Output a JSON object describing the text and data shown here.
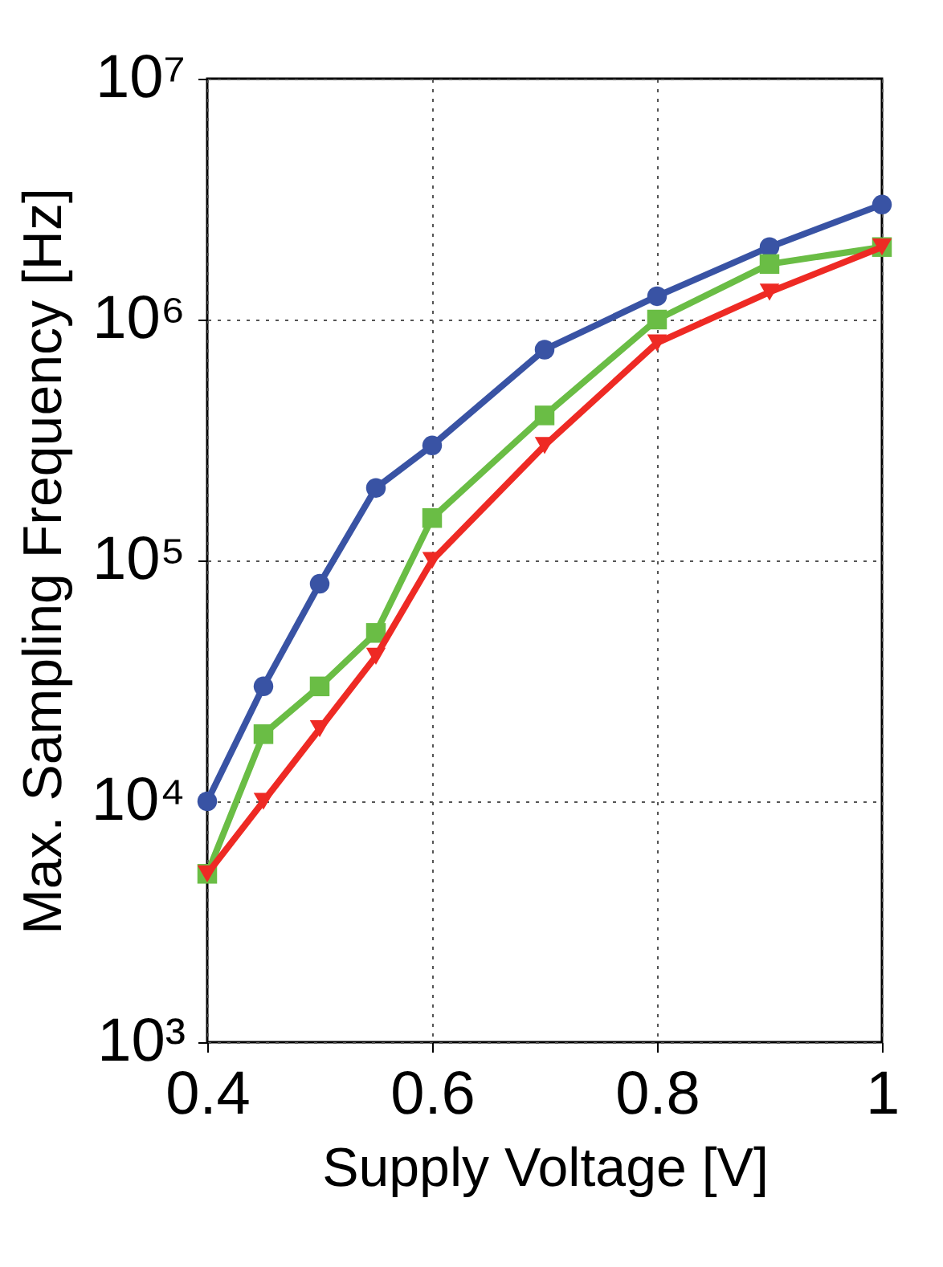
{
  "chart_data": {
    "type": "line",
    "xlabel": "Supply Voltage [V]",
    "ylabel": "Max. Sampling Frequency [Hz]",
    "x": [
      0.4,
      0.45,
      0.5,
      0.55,
      0.6,
      0.7,
      0.8,
      0.9,
      1.0
    ],
    "series": [
      {
        "color": "#3953a4",
        "marker": "circle",
        "values": [
          10000,
          30000,
          80000,
          200000,
          300000,
          750000,
          1250000,
          2000000,
          3000000
        ]
      },
      {
        "color": "#6abd45",
        "marker": "square",
        "values": [
          5000,
          19000,
          30000,
          50000,
          150000,
          400000,
          1000000,
          1700000,
          2000000
        ]
      },
      {
        "color": "#ee2a24",
        "marker": "triangle",
        "values": [
          5000,
          10000,
          20000,
          40000,
          100000,
          300000,
          800000,
          1300000,
          2000000
        ]
      }
    ],
    "log": "y",
    "xlim": [
      0.4,
      1.0
    ],
    "xticks": [
      0.4,
      0.6,
      0.8,
      {
        "value": 1.0,
        "label": "1"
      }
    ],
    "ylim": [
      1000,
      10000000
    ],
    "yticks": [
      {
        "value": 1000,
        "label": "10³"
      },
      {
        "value": 10000,
        "label": "10⁴"
      },
      {
        "value": 100000,
        "label": "10⁵"
      },
      {
        "value": 1000000,
        "label": "10⁶"
      },
      {
        "value": 10000000,
        "label": "10⁷"
      }
    ],
    "grid": true,
    "line_style": "solid"
  }
}
